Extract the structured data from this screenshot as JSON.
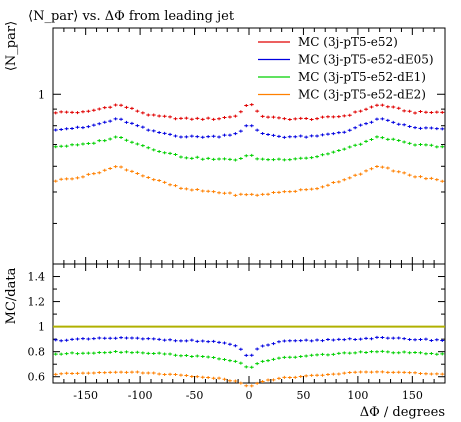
{
  "chart_data": [
    {
      "panel": "main",
      "type": "scatter",
      "title": "⟨N_par⟩ vs. ΔΦ from leading jet",
      "ylabel": "⟨N_par⟩",
      "xlabel": "",
      "scale": "log",
      "xlim": [
        -180,
        180
      ],
      "ylim": [
        0.3,
        1.6
      ],
      "yticks_labeled": [
        {
          "value": 1,
          "label": "1"
        }
      ],
      "legend": "top-right",
      "series": [
        {
          "name": "MC (3j-pT5-e52)",
          "color": "#e00000",
          "ctrl_x": [
            -180,
            -150,
            -120,
            -90,
            -60,
            -30,
            -10,
            0,
            10,
            30,
            60,
            90,
            120,
            150,
            180
          ],
          "ctrl_y": [
            0.88,
            0.88,
            0.93,
            0.86,
            0.84,
            0.84,
            0.86,
            0.95,
            0.86,
            0.84,
            0.84,
            0.86,
            0.93,
            0.88,
            0.88
          ]
        },
        {
          "name": "MC (3j-pT5-e52-dE05)",
          "color": "#0000e0",
          "ctrl_x": [
            -180,
            -150,
            -120,
            -90,
            -60,
            -30,
            -10,
            0,
            10,
            30,
            60,
            90,
            120,
            150,
            180
          ],
          "ctrl_y": [
            0.78,
            0.79,
            0.84,
            0.77,
            0.74,
            0.74,
            0.76,
            0.81,
            0.76,
            0.74,
            0.74,
            0.77,
            0.84,
            0.79,
            0.78
          ]
        },
        {
          "name": "MC (3j-pT5-e52-dE1)",
          "color": "#00d000",
          "ctrl_x": [
            -180,
            -150,
            -120,
            -90,
            -60,
            -30,
            -10,
            0,
            10,
            30,
            60,
            90,
            120,
            150,
            180
          ],
          "ctrl_y": [
            0.69,
            0.7,
            0.74,
            0.68,
            0.64,
            0.63,
            0.63,
            0.65,
            0.63,
            0.63,
            0.64,
            0.68,
            0.74,
            0.7,
            0.69
          ]
        },
        {
          "name": "MC (3j-pT5-e52-dE2)",
          "color": "#ff8000",
          "ctrl_x": [
            -180,
            -150,
            -120,
            -90,
            -60,
            -30,
            -10,
            0,
            10,
            30,
            60,
            90,
            120,
            150,
            180
          ],
          "ctrl_y": [
            0.54,
            0.56,
            0.6,
            0.55,
            0.51,
            0.5,
            0.49,
            0.49,
            0.49,
            0.5,
            0.51,
            0.55,
            0.6,
            0.56,
            0.54
          ]
        }
      ]
    },
    {
      "panel": "ratio",
      "type": "scatter",
      "ylabel": "MC/data",
      "xlabel": "ΔΦ / degrees",
      "xlim": [
        -180,
        180
      ],
      "ylim": [
        0.55,
        1.5
      ],
      "yticks": [
        0.6,
        0.8,
        1,
        1.2,
        1.4
      ],
      "xticks": [
        -150,
        -100,
        -50,
        0,
        50,
        100,
        150
      ],
      "reference": {
        "value": 1,
        "color": "#b0b000"
      },
      "series": [
        {
          "name": "MC (3j-pT5-e52-dE05)",
          "color": "#0000e0",
          "ctrl_x": [
            -180,
            -150,
            -120,
            -90,
            -60,
            -30,
            -10,
            0,
            10,
            30,
            60,
            90,
            120,
            150,
            180
          ],
          "ctrl_y": [
            0.89,
            0.9,
            0.91,
            0.9,
            0.89,
            0.88,
            0.84,
            0.75,
            0.84,
            0.88,
            0.89,
            0.9,
            0.91,
            0.9,
            0.89
          ]
        },
        {
          "name": "MC (3j-pT5-e52-dE1)",
          "color": "#00d000",
          "ctrl_x": [
            -180,
            -150,
            -120,
            -90,
            -60,
            -30,
            -10,
            0,
            10,
            30,
            60,
            90,
            120,
            150,
            180
          ],
          "ctrl_y": [
            0.78,
            0.79,
            0.8,
            0.79,
            0.77,
            0.75,
            0.72,
            0.66,
            0.72,
            0.75,
            0.77,
            0.79,
            0.8,
            0.79,
            0.78
          ]
        },
        {
          "name": "MC (3j-pT5-e52-dE2)",
          "color": "#ff8000",
          "ctrl_x": [
            -180,
            -150,
            -120,
            -90,
            -60,
            -30,
            -10,
            0,
            10,
            30,
            60,
            90,
            120,
            150,
            180
          ],
          "ctrl_y": [
            0.62,
            0.63,
            0.64,
            0.63,
            0.61,
            0.59,
            0.56,
            0.52,
            0.56,
            0.59,
            0.61,
            0.63,
            0.64,
            0.63,
            0.62
          ]
        }
      ]
    }
  ]
}
